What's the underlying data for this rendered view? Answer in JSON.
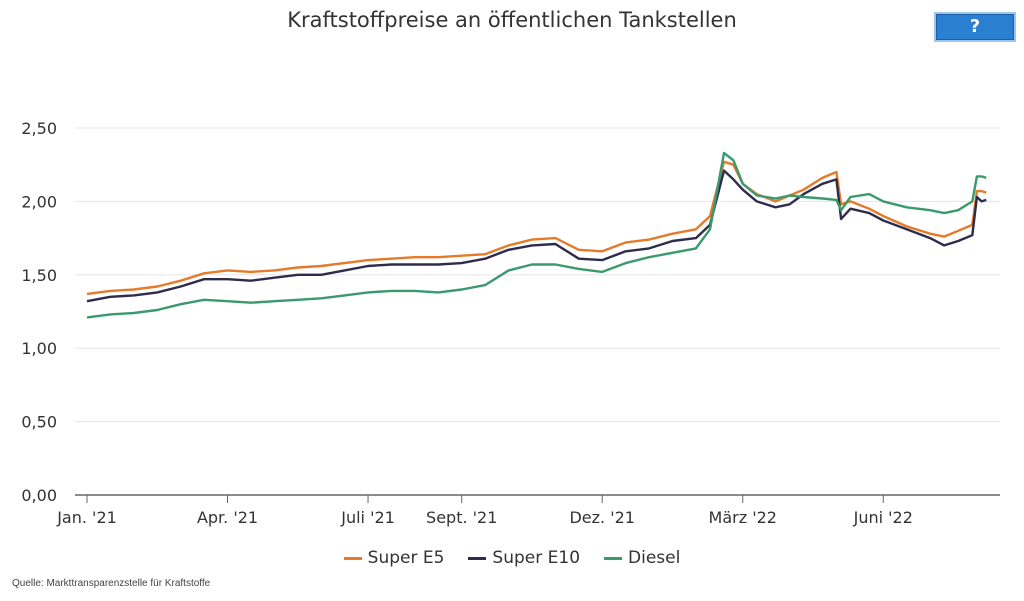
{
  "title": "Kraftstoffpreise an öffentlichen Tankstellen",
  "help_button": {
    "label": "?"
  },
  "source": "Quelle: Markttransparenzstelle für Kraftstoffe",
  "colors": {
    "super_e5": "#e57a2a",
    "super_e10": "#2d2c4d",
    "diesel": "#3a9a6e",
    "grid": "#e6e6e6",
    "axis": "#666666"
  },
  "chart_data": {
    "type": "line",
    "title": "Kraftstoffpreise an öffentlichen Tankstellen",
    "xlabel": "",
    "ylabel": "",
    "x_ticks": [
      {
        "label": "Jan. '21",
        "month": 0
      },
      {
        "label": "Apr. '21",
        "month": 3
      },
      {
        "label": "Juli '21",
        "month": 6
      },
      {
        "label": "Sept. '21",
        "month": 8
      },
      {
        "label": "Dez. '21",
        "month": 11
      },
      {
        "label": "März '22",
        "month": 14
      },
      {
        "label": "Juni '22",
        "month": 17
      }
    ],
    "y_ticks": [
      "0,00",
      "0,50",
      "1,00",
      "1,50",
      "2,00",
      "2,50"
    ],
    "ylim": [
      0,
      2.5
    ],
    "xlim": [
      0,
      19.3
    ],
    "grid": true,
    "legend_position": "bottom",
    "x": [
      0,
      0.5,
      1,
      1.5,
      2,
      2.5,
      3,
      3.5,
      4,
      4.5,
      5,
      5.5,
      6,
      6.5,
      7,
      7.5,
      8,
      8.5,
      9,
      9.5,
      10,
      10.5,
      11,
      11.5,
      12,
      12.5,
      13,
      13.3,
      13.6,
      13.8,
      14,
      14.3,
      14.7,
      15,
      15.3,
      15.7,
      16,
      16.1,
      16.3,
      16.7,
      17,
      17.5,
      18,
      18.3,
      18.6,
      18.9,
      19.0,
      19.1,
      19.2
    ],
    "series": [
      {
        "name": "Super E5",
        "color": "#e57a2a",
        "values": [
          1.37,
          1.39,
          1.4,
          1.42,
          1.46,
          1.51,
          1.53,
          1.52,
          1.53,
          1.55,
          1.56,
          1.58,
          1.6,
          1.61,
          1.62,
          1.62,
          1.63,
          1.64,
          1.7,
          1.74,
          1.75,
          1.67,
          1.66,
          1.72,
          1.74,
          1.78,
          1.81,
          1.9,
          2.27,
          2.25,
          2.12,
          2.05,
          2.0,
          2.04,
          2.08,
          2.16,
          2.2,
          1.98,
          2.0,
          1.95,
          1.9,
          1.83,
          1.78,
          1.76,
          1.8,
          1.84,
          2.07,
          2.07,
          2.06
        ]
      },
      {
        "name": "Super E10",
        "color": "#2d2c4d",
        "values": [
          1.32,
          1.35,
          1.36,
          1.38,
          1.42,
          1.47,
          1.47,
          1.46,
          1.48,
          1.5,
          1.5,
          1.53,
          1.56,
          1.57,
          1.57,
          1.57,
          1.58,
          1.61,
          1.67,
          1.7,
          1.71,
          1.61,
          1.6,
          1.66,
          1.68,
          1.73,
          1.75,
          1.84,
          2.21,
          2.15,
          2.08,
          2.0,
          1.96,
          1.98,
          2.05,
          2.12,
          2.15,
          1.88,
          1.95,
          1.92,
          1.87,
          1.81,
          1.75,
          1.7,
          1.73,
          1.77,
          2.03,
          2.0,
          2.01
        ]
      },
      {
        "name": "Diesel",
        "color": "#3a9a6e",
        "values": [
          1.21,
          1.23,
          1.24,
          1.26,
          1.3,
          1.33,
          1.32,
          1.31,
          1.32,
          1.33,
          1.34,
          1.36,
          1.38,
          1.39,
          1.39,
          1.38,
          1.4,
          1.43,
          1.53,
          1.57,
          1.57,
          1.54,
          1.52,
          1.58,
          1.62,
          1.65,
          1.68,
          1.81,
          2.33,
          2.28,
          2.12,
          2.04,
          2.02,
          2.04,
          2.03,
          2.02,
          2.01,
          1.94,
          2.03,
          2.05,
          2.0,
          1.96,
          1.94,
          1.92,
          1.94,
          2.0,
          2.17,
          2.17,
          2.16
        ]
      }
    ]
  }
}
